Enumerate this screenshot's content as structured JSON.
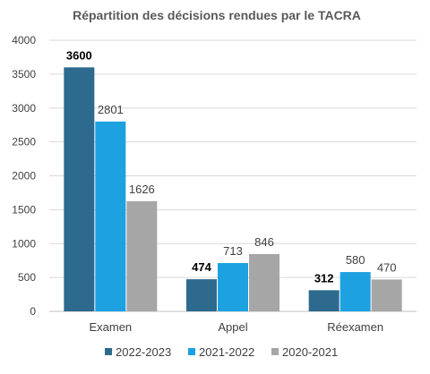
{
  "chart_data": {
    "type": "bar",
    "title": "Répartition des décisions rendues par le TACRA",
    "xlabel": "",
    "ylabel": "",
    "ylim": [
      0,
      4000
    ],
    "yticks": [
      0,
      500,
      1000,
      1500,
      2000,
      2500,
      3000,
      3500,
      4000
    ],
    "grid": true,
    "legend_position": "bottom",
    "categories": [
      "Examen",
      "Appel",
      "Réexamen"
    ],
    "series": [
      {
        "name": "2022-2023",
        "color": "#2e6a8e",
        "values": [
          3600,
          474,
          312
        ]
      },
      {
        "name": "2021-2022",
        "color": "#1ea1e1",
        "values": [
          2801,
          713,
          580
        ]
      },
      {
        "name": "2020-2021",
        "color": "#a6a6a6",
        "values": [
          1626,
          846,
          470
        ]
      }
    ]
  }
}
